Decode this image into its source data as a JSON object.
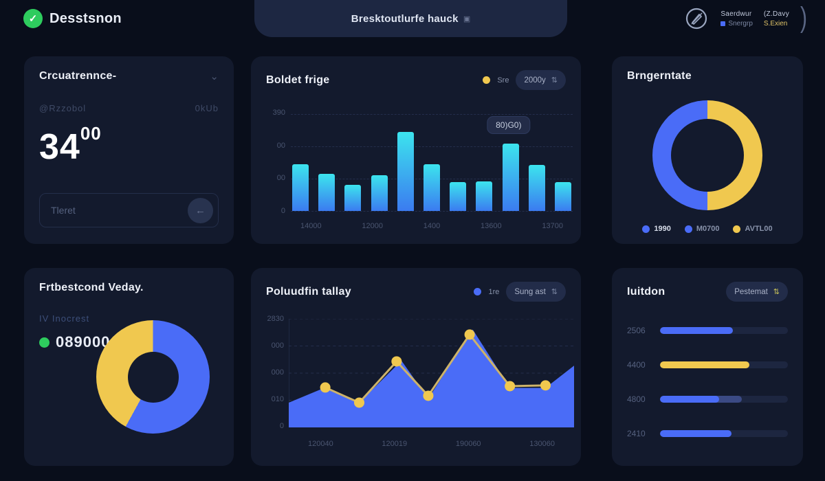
{
  "colors": {
    "background": "#090e1b",
    "card": "#131a2d",
    "blue": "#4a6cf7",
    "yellow": "#f0c84f",
    "green": "#2ecc5e",
    "cyan": "#3ce4ee",
    "dim_text": "#55617f",
    "white_text": "#e9edf6"
  },
  "header": {
    "logo_check": "✓",
    "logo_title": "Desstsnon",
    "center_title": "Bresktoutlurfe hauck",
    "right_group1_top": "Saerdwur",
    "right_group1_bottom": "Snergrp",
    "right_group2_top": "(Z.Davy",
    "right_group2_bottom": "S.Exien",
    "paren": ")"
  },
  "stat_card": {
    "title": "Crcuatrennce-",
    "sub_left": "@Rzzobol",
    "sub_right": "0kUb",
    "value_main": "34",
    "value_sup": "00",
    "input_placeholder": "Tleret",
    "button_glyph": "←"
  },
  "bar_card": {
    "title": "Boldet frige",
    "legend_label": "Sre",
    "dropdown_value": "2000y",
    "sort_glyph": "⇅"
  },
  "donut1_card": {
    "title": "Brngerntate"
  },
  "donut2_card": {
    "title": "Frtbestcond Veday.",
    "subtitle": "IV Inocrest",
    "value": "089000"
  },
  "area_card": {
    "title": "Poluudfin tallay",
    "legend_label": "1re",
    "dropdown_value": "Sung ast",
    "sort_glyph": "⇅"
  },
  "progress_card": {
    "title": "Iuitdon",
    "dropdown_value": "Pestemat",
    "sort_glyph": "⇅"
  },
  "chart_data": [
    {
      "type": "bar",
      "title": "Boldet frige",
      "values": [
        189,
        149,
        105,
        143,
        319,
        189,
        116,
        119,
        270,
        184,
        116
      ],
      "x_tick_labels": [
        "14000",
        "12000",
        "1400",
        "13600",
        "13700"
      ],
      "y_tick_labels": [
        "390",
        "00",
        "00",
        "0"
      ],
      "ylim": [
        0,
        390
      ],
      "grid": true,
      "bar_gradient": [
        "#3ce4ee",
        "#3b7bf0"
      ],
      "legend": [
        {
          "label": "Sre",
          "color": "#f0c84f"
        }
      ],
      "tooltip": {
        "text": "80)G0)",
        "bar_index": 8
      }
    },
    {
      "type": "pie",
      "title": "Brngerntate",
      "slices": [
        {
          "label": "AVTL00",
          "value": 50,
          "color": "#f0c84f"
        },
        {
          "label": "1990",
          "value": 50,
          "color": "#4a6cf7"
        }
      ],
      "legend": [
        {
          "label": "1990",
          "color": "#4a6cf7"
        },
        {
          "label": "M0700",
          "color": "#4a6cf7"
        },
        {
          "label": "AVTL00",
          "color": "#f0c84f"
        }
      ],
      "donut": true,
      "hole_ratio": 0.65
    },
    {
      "type": "pie",
      "title": "Frtbestcond Veday.",
      "slices": [
        {
          "label": "blue",
          "value": 58,
          "color": "#4a6cf7"
        },
        {
          "label": "yellow",
          "value": 42,
          "color": "#f0c84f"
        }
      ],
      "donut": true,
      "hole_ratio": 0.45
    },
    {
      "type": "area",
      "title": "Poluudfin tallay",
      "ylim": [
        0,
        2830
      ],
      "y_tick_labels": [
        "2830",
        "000",
        "000",
        "010",
        "0"
      ],
      "x_tick_labels": [
        "120040",
        "120019",
        "190060",
        "130060"
      ],
      "grid": true,
      "area_color": "#4a6cf7",
      "area_profile": [
        {
          "x": 0.0,
          "v": 645
        },
        {
          "x": 0.128,
          "v": 1040
        },
        {
          "x": 0.247,
          "v": 645
        },
        {
          "x": 0.395,
          "v": 1740
        },
        {
          "x": 0.489,
          "v": 750
        },
        {
          "x": 0.645,
          "v": 2550
        },
        {
          "x": 0.775,
          "v": 1030
        },
        {
          "x": 0.9,
          "v": 1030
        },
        {
          "x": 1.0,
          "v": 1610
        }
      ],
      "line": {
        "color": "#cdb36a",
        "dot_color": "#f0c84f",
        "points": [
          {
            "x": 0.128,
            "v": 1040
          },
          {
            "x": 0.247,
            "v": 645
          },
          {
            "x": 0.378,
            "v": 1720
          },
          {
            "x": 0.489,
            "v": 825
          },
          {
            "x": 0.634,
            "v": 2420
          },
          {
            "x": 0.775,
            "v": 1075
          },
          {
            "x": 0.9,
            "v": 1095
          }
        ]
      },
      "legend": [
        {
          "label": "1re",
          "color": "#4a6cf7"
        }
      ]
    },
    {
      "type": "bar",
      "subtype": "horizontal-progress",
      "title": "Iuitdon",
      "max": 100,
      "rows": [
        {
          "label": "2506",
          "value": 57,
          "color": "#4a6cf7"
        },
        {
          "label": "4400",
          "value": 70,
          "color": "#f0c84f"
        },
        {
          "label": "4800",
          "value": 46,
          "color": "#4a6cf7",
          "secondary_value": 64,
          "secondary_color": "#3b4a84"
        },
        {
          "label": "2410",
          "value": 56,
          "color": "#4a6cf7"
        }
      ]
    }
  ]
}
